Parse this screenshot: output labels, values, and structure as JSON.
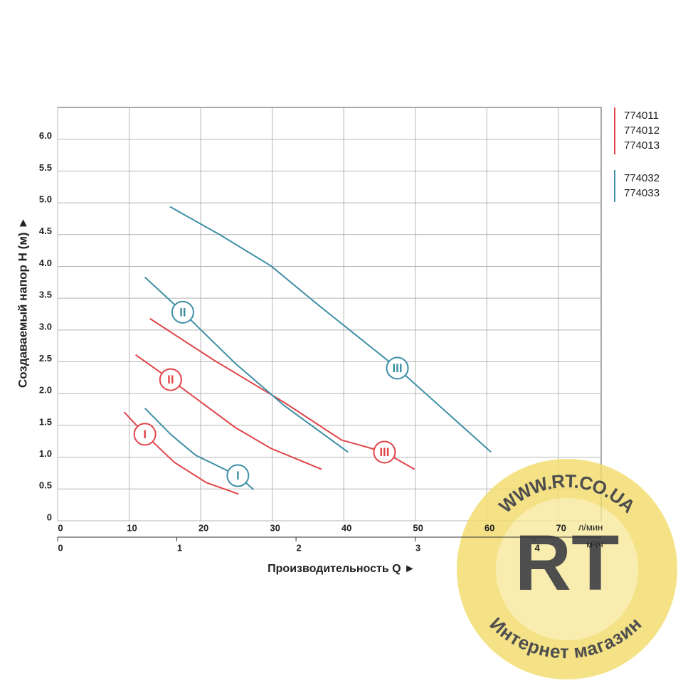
{
  "chart_data": {
    "type": "line",
    "xlabel": "Производительность Q ►",
    "ylabel": "Создаваемый напор H (м) ►",
    "xunit": "л/мин",
    "x2unit": "м³/ч",
    "xlim": [
      0,
      76
    ],
    "xticks": [
      0,
      10,
      20,
      30,
      40,
      50,
      60,
      70
    ],
    "x2lim": [
      0,
      4.56
    ],
    "x2ticks": [
      0,
      1,
      2,
      3,
      4
    ],
    "ylim": [
      0,
      6.5
    ],
    "yticks": [
      0,
      {
        "value": 0.5,
        "label": "0.5"
      },
      {
        "value": 1,
        "label": "1.0"
      },
      {
        "value": 1.5,
        "label": "1.5"
      },
      {
        "value": 2,
        "label": "2.0"
      },
      {
        "value": 2.5,
        "label": "2.5"
      },
      {
        "value": 3,
        "label": "3.0"
      },
      {
        "value": 3.5,
        "label": "3.5"
      },
      {
        "value": 4,
        "label": "4.0"
      },
      {
        "value": 4.5,
        "label": "4.5"
      },
      {
        "value": 5,
        "label": "5.0"
      },
      {
        "value": 5.5,
        "label": "5.5"
      },
      {
        "value": 6,
        "label": "6.0"
      }
    ],
    "grid": true,
    "series": [
      {
        "name": "I",
        "color": "#e0454a",
        "x": [
          9.3,
          12.2,
          16.3,
          20.8,
          25.3
        ],
        "values": [
          1.71,
          1.36,
          0.92,
          0.6,
          0.42
        ]
      },
      {
        "name": "II",
        "color": "#e0454a",
        "x": [
          10.9,
          15.8,
          24.8,
          29.8,
          36.9
        ],
        "values": [
          2.61,
          2.22,
          1.47,
          1.14,
          0.81
        ]
      },
      {
        "name": "III",
        "color": "#e0454a",
        "x": [
          12.9,
          21.8,
          31.7,
          39.7,
          45.7,
          49.9
        ],
        "values": [
          3.18,
          2.53,
          1.86,
          1.27,
          1.08,
          0.81
        ]
      },
      {
        "name": "I",
        "color": "#3e8fa6",
        "x": [
          12.2,
          15.8,
          19.3,
          25.2,
          27.4
        ],
        "values": [
          1.77,
          1.36,
          1.03,
          0.71,
          0.49
        ]
      },
      {
        "name": "II",
        "color": "#3e8fa6",
        "x": [
          12.2,
          17.5,
          24.8,
          31.7,
          40.6
        ],
        "values": [
          3.83,
          3.28,
          2.48,
          1.81,
          1.08
        ]
      },
      {
        "name": "III",
        "color": "#3e8fa6",
        "x": [
          15.7,
          22.8,
          29.8,
          36.7,
          47.5,
          60.6
        ],
        "values": [
          4.94,
          4.49,
          4.01,
          3.37,
          2.4,
          1.08
        ]
      }
    ],
    "legend": [
      {
        "color": "#e0454a",
        "items": [
          "774011",
          "774012",
          "774013"
        ]
      },
      {
        "color": "#3e8fa6",
        "items": [
          "774032",
          "774033"
        ]
      }
    ],
    "watermark": {
      "top": "WWW.RT.CO.UA",
      "logo": "RT",
      "bottom": "Интернет магазин"
    }
  }
}
